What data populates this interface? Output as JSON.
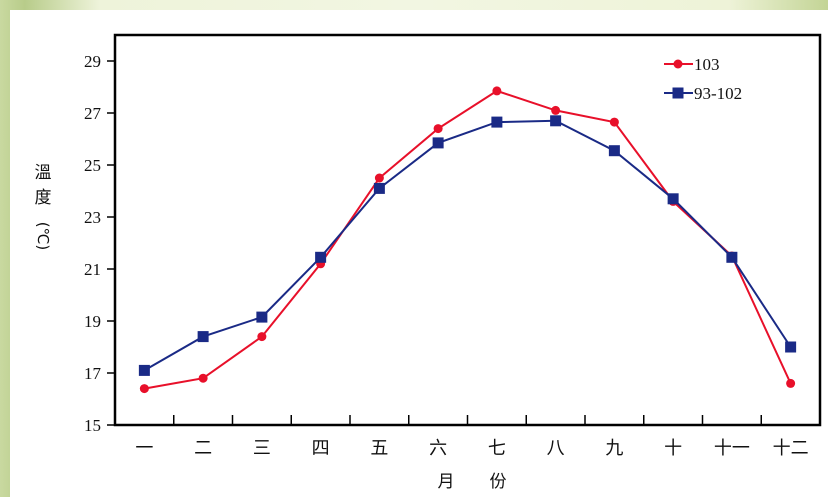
{
  "chart_data": {
    "type": "line",
    "title": "",
    "ylabel": "溫度(℃)",
    "ylabel_chars": [
      "溫",
      "度",
      "(℃)"
    ],
    "xlabel": "月 份",
    "xlabel_chars": [
      "月",
      "份"
    ],
    "categories": [
      "一",
      "二",
      "三",
      "四",
      "五",
      "六",
      "七",
      "八",
      "九",
      "十",
      "十一",
      "十二"
    ],
    "ylim": [
      15,
      30
    ],
    "yticks": [
      15,
      17,
      19,
      21,
      23,
      25,
      27,
      29
    ],
    "legend_position": "top-right",
    "series": [
      {
        "name": "103",
        "color": "#e8102a",
        "marker": "circle",
        "values": [
          16.4,
          16.8,
          18.4,
          21.2,
          24.5,
          26.4,
          27.85,
          27.1,
          26.65,
          23.6,
          21.5,
          16.6
        ]
      },
      {
        "name": "93-102",
        "color": "#1a2a86",
        "marker": "square",
        "values": [
          17.1,
          18.4,
          19.15,
          21.45,
          24.1,
          25.85,
          26.65,
          26.7,
          25.55,
          23.7,
          21.45,
          18.0
        ]
      }
    ]
  }
}
